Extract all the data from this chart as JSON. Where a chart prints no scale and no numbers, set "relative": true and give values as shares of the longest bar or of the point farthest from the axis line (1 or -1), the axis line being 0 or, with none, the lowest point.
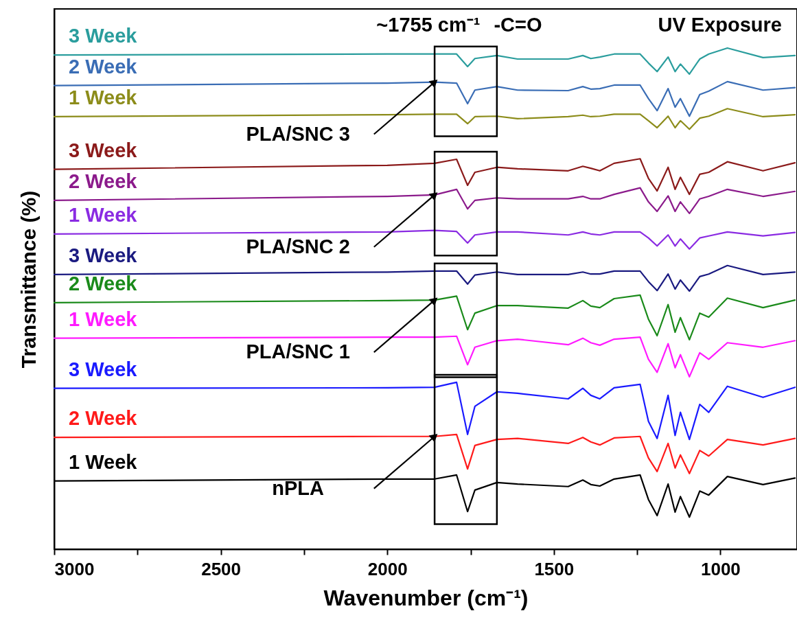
{
  "chart_data": {
    "type": "line",
    "relative": true,
    "xlabel": "Wavenumber (cm⁻¹)",
    "ylabel": "Transmittance (%)",
    "xlim": [
      3000,
      770
    ],
    "xticks": [
      3000,
      {
        "value": 2750,
        "label": null
      },
      2500,
      {
        "value": 2250,
        "label": null
      },
      2000,
      {
        "value": 1750,
        "label": null
      },
      1500,
      {
        "value": 1250,
        "label": null
      },
      1000
    ],
    "x": [
      3000,
      2000,
      1858,
      1792,
      1759,
      1737,
      1671,
      1609,
      1457,
      1413,
      1389,
      1362,
      1319,
      1241,
      1216,
      1190,
      1157,
      1136,
      1120,
      1093,
      1062,
      1035,
      979,
      872,
      776
    ],
    "line_style": "solid",
    "marker": "none",
    "grid": false,
    "series": [
      {
        "name": "3 Week",
        "color": "#2a9d9d",
        "values": [
          0.986,
          0.988,
          0.988,
          0.988,
          0.963,
          0.979,
          0.985,
          0.978,
          0.978,
          0.985,
          0.979,
          0.982,
          0.988,
          0.988,
          0.97,
          0.953,
          0.982,
          0.953,
          0.968,
          0.948,
          0.978,
          0.988,
          1.0,
          0.981,
          0.985
        ]
      },
      {
        "name": "2 Week",
        "color": "#3a6db5",
        "values": [
          0.925,
          0.93,
          0.932,
          0.93,
          0.889,
          0.916,
          0.923,
          0.916,
          0.915,
          0.923,
          0.918,
          0.919,
          0.926,
          0.926,
          0.899,
          0.875,
          0.919,
          0.882,
          0.899,
          0.864,
          0.907,
          0.914,
          0.933,
          0.916,
          0.921
        ]
      },
      {
        "name": "1 Week",
        "color": "#8c8c1a",
        "values": [
          0.863,
          0.867,
          0.868,
          0.868,
          0.849,
          0.863,
          0.864,
          0.859,
          0.863,
          0.866,
          0.863,
          0.864,
          0.868,
          0.868,
          0.855,
          0.841,
          0.864,
          0.841,
          0.855,
          0.838,
          0.86,
          0.864,
          0.879,
          0.863,
          0.867
        ]
      },
      {
        "name": "3 Week",
        "color": "#8b1a1a",
        "values": [
          0.758,
          0.766,
          0.77,
          0.778,
          0.726,
          0.752,
          0.762,
          0.759,
          0.755,
          0.764,
          0.76,
          0.755,
          0.77,
          0.779,
          0.74,
          0.715,
          0.762,
          0.718,
          0.742,
          0.708,
          0.748,
          0.752,
          0.773,
          0.755,
          0.771
        ]
      },
      {
        "name": "2 Week",
        "color": "#8b1a8b",
        "values": [
          0.696,
          0.704,
          0.707,
          0.718,
          0.679,
          0.696,
          0.701,
          0.699,
          0.699,
          0.704,
          0.699,
          0.699,
          0.708,
          0.721,
          0.693,
          0.674,
          0.705,
          0.674,
          0.693,
          0.67,
          0.699,
          0.704,
          0.718,
          0.704,
          0.714
        ]
      },
      {
        "name": "1 Week",
        "color": "#8a2be2",
        "values": [
          0.629,
          0.633,
          0.636,
          0.634,
          0.611,
          0.627,
          0.633,
          0.633,
          0.627,
          0.633,
          0.629,
          0.627,
          0.633,
          0.633,
          0.621,
          0.605,
          0.627,
          0.605,
          0.619,
          0.599,
          0.621,
          0.625,
          0.633,
          0.625,
          0.632
        ]
      },
      {
        "name": "3 Week",
        "color": "#1a1a80",
        "values": [
          0.548,
          0.553,
          0.555,
          0.555,
          0.529,
          0.547,
          0.553,
          0.548,
          0.548,
          0.553,
          0.549,
          0.549,
          0.555,
          0.555,
          0.534,
          0.516,
          0.549,
          0.519,
          0.537,
          0.515,
          0.544,
          0.549,
          0.566,
          0.548,
          0.553
        ]
      },
      {
        "name": "2 Week",
        "color": "#1a8a1a",
        "values": [
          0.492,
          0.496,
          0.497,
          0.505,
          0.438,
          0.471,
          0.486,
          0.486,
          0.481,
          0.496,
          0.485,
          0.482,
          0.5,
          0.507,
          0.459,
          0.426,
          0.488,
          0.433,
          0.462,
          0.418,
          0.471,
          0.463,
          0.501,
          0.482,
          0.497
        ]
      },
      {
        "name": "1 Week",
        "color": "#ff1aff",
        "values": [
          0.421,
          0.423,
          0.423,
          0.425,
          0.368,
          0.403,
          0.416,
          0.419,
          0.408,
          0.421,
          0.412,
          0.407,
          0.419,
          0.423,
          0.379,
          0.353,
          0.41,
          0.362,
          0.388,
          0.344,
          0.392,
          0.379,
          0.412,
          0.403,
          0.416
        ]
      },
      {
        "name": "3 Week",
        "color": "#1a1aff",
        "values": [
          0.321,
          0.322,
          0.323,
          0.333,
          0.229,
          0.285,
          0.314,
          0.311,
          0.3,
          0.321,
          0.307,
          0.3,
          0.322,
          0.329,
          0.255,
          0.221,
          0.307,
          0.227,
          0.273,
          0.219,
          0.289,
          0.273,
          0.325,
          0.303,
          0.323
        ]
      },
      {
        "name": "2 Week",
        "color": "#ff1a1a",
        "values": [
          0.223,
          0.225,
          0.225,
          0.229,
          0.16,
          0.207,
          0.219,
          0.221,
          0.211,
          0.223,
          0.214,
          0.208,
          0.222,
          0.225,
          0.182,
          0.155,
          0.211,
          0.162,
          0.188,
          0.151,
          0.197,
          0.186,
          0.219,
          0.208,
          0.221
        ]
      },
      {
        "name": "1 Week",
        "color": "#000000",
        "values": [
          0.136,
          0.14,
          0.14,
          0.148,
          0.075,
          0.118,
          0.133,
          0.13,
          0.125,
          0.138,
          0.129,
          0.126,
          0.14,
          0.148,
          0.099,
          0.067,
          0.13,
          0.074,
          0.105,
          0.064,
          0.116,
          0.108,
          0.145,
          0.129,
          0.142
        ]
      }
    ],
    "annotations": [
      "~1755 cm⁻¹",
      "-C=O",
      "UV Exposure",
      "PLA/SNC 3",
      "PLA/SNC 2",
      "PLA/SNC 1",
      "nPLA"
    ]
  }
}
